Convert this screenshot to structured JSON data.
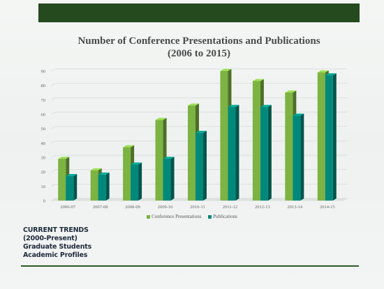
{
  "colors": {
    "top_bar": "#244a1e",
    "conference": "#7cb342",
    "publications": "#00897b",
    "bottom_line": "#2d5a27"
  },
  "chart_data": {
    "type": "bar",
    "title": "Number of Conference Presentations and Publications",
    "subtitle": "(2006 to 2015)",
    "categories": [
      "2006-07",
      "2007-08",
      "2008-09",
      "2009-10",
      "2010-11",
      "2011-12",
      "2012-13",
      "2013-14",
      "2014-15"
    ],
    "series": [
      {
        "name": "Conference Presentations",
        "values": [
          29,
          21,
          37,
          56,
          66,
          90,
          83,
          75,
          89
        ]
      },
      {
        "name": "Publications",
        "values": [
          17,
          18,
          25,
          29,
          47,
          65,
          65,
          59,
          87
        ]
      }
    ],
    "yticks": [
      0,
      10,
      20,
      30,
      40,
      50,
      60,
      70,
      80,
      90
    ],
    "ylim": [
      0,
      90
    ],
    "grid": true,
    "legend_position": "bottom",
    "style": "3d-column"
  },
  "sidebar": {
    "lines": [
      "CURRENT TRENDS",
      "(2000-Present)",
      "Graduate Students",
      "Academic Profiles"
    ]
  }
}
